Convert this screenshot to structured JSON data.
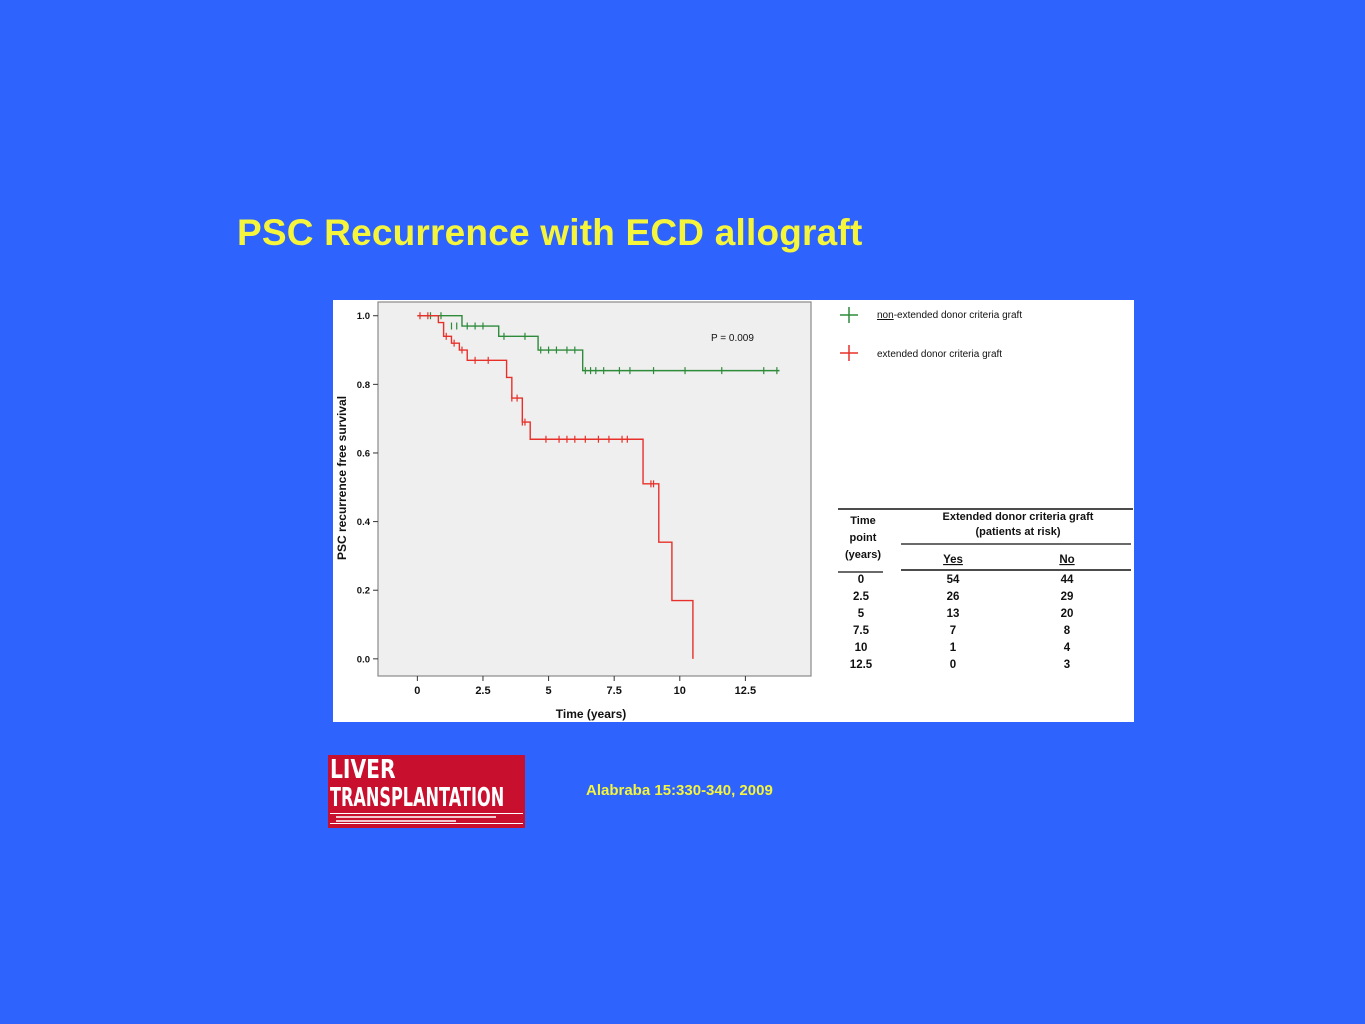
{
  "slide": {
    "title": "PSC Recurrence with ECD allograft",
    "citation": "Alabraba  15:330-340, 2009"
  },
  "logo": {
    "line1": "LIVER",
    "line2": "TRANSPLANTATION",
    "colors": {
      "background": "#c8102e",
      "text": "#ffffff"
    }
  },
  "colors": {
    "background": "#2e63fe",
    "title": "#f5f53c",
    "plot_area": "#efefef",
    "non_extended": "#2e8b3a",
    "extended": "#e8302a"
  },
  "chart_data": {
    "type": "line",
    "subtype": "kaplan-meier",
    "xlabel": "Time (years)",
    "ylabel": "PSC recurrence free survival",
    "xlim": [
      -1.5,
      15
    ],
    "ylim": [
      -0.05,
      1.04
    ],
    "xticks": [
      0,
      2.5,
      5,
      7.5,
      10,
      12.5
    ],
    "xtick_labels": [
      "0",
      "2.5",
      "5",
      "7.5",
      "10",
      "12.5"
    ],
    "yticks": [
      0.0,
      0.2,
      0.4,
      0.6,
      0.8,
      1.0
    ],
    "ytick_labels": [
      "0.0",
      "0.2",
      "0.4",
      "0.6",
      "0.8",
      "1.0"
    ],
    "annotation": "P = 0.009",
    "legend_position": "top-right",
    "series": [
      {
        "name": "non-extended donor criteria graft",
        "color": "#2e8b3a",
        "steps": [
          [
            0,
            1.0
          ],
          [
            1.7,
            0.97
          ],
          [
            3.1,
            0.94
          ],
          [
            4.6,
            0.9
          ],
          [
            6.3,
            0.84
          ],
          [
            13.8,
            0.84
          ]
        ],
        "censors": [
          [
            0.5,
            1.0
          ],
          [
            0.9,
            1.0
          ],
          [
            1.3,
            0.97
          ],
          [
            1.5,
            0.97
          ],
          [
            1.9,
            0.97
          ],
          [
            2.2,
            0.97
          ],
          [
            2.5,
            0.97
          ],
          [
            3.3,
            0.94
          ],
          [
            4.1,
            0.94
          ],
          [
            4.7,
            0.9
          ],
          [
            5.0,
            0.9
          ],
          [
            5.3,
            0.9
          ],
          [
            5.7,
            0.9
          ],
          [
            6.0,
            0.9
          ],
          [
            6.4,
            0.84
          ],
          [
            6.6,
            0.84
          ],
          [
            6.8,
            0.84
          ],
          [
            7.1,
            0.84
          ],
          [
            7.7,
            0.84
          ],
          [
            8.1,
            0.84
          ],
          [
            9.0,
            0.84
          ],
          [
            10.2,
            0.84
          ],
          [
            11.6,
            0.84
          ],
          [
            13.2,
            0.84
          ],
          [
            13.7,
            0.84
          ]
        ]
      },
      {
        "name": "extended donor criteria graft",
        "color": "#e8302a",
        "steps": [
          [
            0,
            1.0
          ],
          [
            0.8,
            0.98
          ],
          [
            1.0,
            0.94
          ],
          [
            1.3,
            0.92
          ],
          [
            1.6,
            0.9
          ],
          [
            1.9,
            0.87
          ],
          [
            3.4,
            0.82
          ],
          [
            3.6,
            0.76
          ],
          [
            4.0,
            0.69
          ],
          [
            4.3,
            0.64
          ],
          [
            8.6,
            0.51
          ],
          [
            9.2,
            0.34
          ],
          [
            9.7,
            0.17
          ],
          [
            10.5,
            0.0
          ]
        ],
        "censors": [
          [
            0.1,
            1.0
          ],
          [
            0.4,
            1.0
          ],
          [
            1.1,
            0.94
          ],
          [
            1.4,
            0.92
          ],
          [
            1.7,
            0.9
          ],
          [
            2.2,
            0.87
          ],
          [
            2.7,
            0.87
          ],
          [
            3.6,
            0.76
          ],
          [
            3.8,
            0.76
          ],
          [
            4.0,
            0.69
          ],
          [
            4.1,
            0.69
          ],
          [
            4.9,
            0.64
          ],
          [
            5.4,
            0.64
          ],
          [
            5.7,
            0.64
          ],
          [
            6.0,
            0.64
          ],
          [
            6.4,
            0.64
          ],
          [
            6.9,
            0.64
          ],
          [
            7.3,
            0.64
          ],
          [
            7.8,
            0.64
          ],
          [
            8.0,
            0.64
          ],
          [
            8.9,
            0.51
          ],
          [
            9.0,
            0.51
          ]
        ]
      }
    ],
    "risk_table": {
      "col_time_header": "Time point (years)",
      "group_header": "Extended donor criteria graft (patients at risk)",
      "col_yes": "Yes",
      "col_no": "No",
      "rows": [
        {
          "time": "0",
          "yes": "54",
          "no": "44"
        },
        {
          "time": "2.5",
          "yes": "26",
          "no": "29"
        },
        {
          "time": "5",
          "yes": "13",
          "no": "20"
        },
        {
          "time": "7.5",
          "yes": "7",
          "no": "8"
        },
        {
          "time": "10",
          "yes": "1",
          "no": "4"
        },
        {
          "time": "12.5",
          "yes": "0",
          "no": "3"
        }
      ]
    }
  }
}
